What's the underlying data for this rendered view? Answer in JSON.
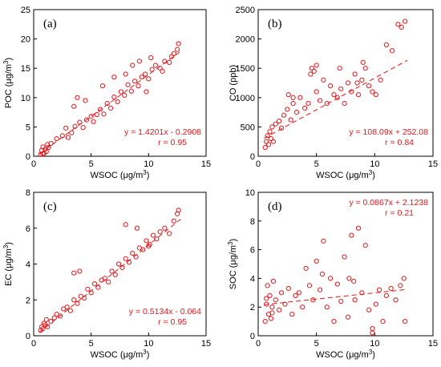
{
  "colors": {
    "points": "#e8141b",
    "fit": "#e8141b",
    "axes": "#000000"
  },
  "chart_data": [
    {
      "type": "scatter",
      "panel_label": "(a)",
      "xlabel_main": "WSOC (μg/m",
      "xlabel_sup": "3",
      "xlabel_end": ")",
      "ylabel_main": "POC (μg/m",
      "ylabel_sup": "3",
      "ylabel_end": ")",
      "xlim": [
        0,
        15
      ],
      "ylim": [
        0,
        25
      ],
      "xticks": [
        0,
        5,
        10,
        15
      ],
      "yticks": [
        0,
        5,
        10,
        15,
        20,
        25
      ],
      "fit": {
        "slope": 1.4201,
        "intercept": -0.2908
      },
      "equation": "y = 1.4201x - 0.2908",
      "r_text": "r = 0.95",
      "label_position": "bottom-right",
      "series": [
        {
          "x": [
            0.6,
            0.7,
            0.8,
            0.9,
            1.0,
            1.1,
            1.2,
            1.3,
            0.8,
            1.5,
            2.0,
            2.5,
            2.8,
            3.0,
            3.3,
            3.6,
            4.0,
            4.3,
            4.6,
            5.0,
            5.2,
            5.5,
            5.8,
            6.1,
            6.4,
            6.7,
            7.0,
            7.3,
            7.6,
            7.9,
            8.2,
            8.5,
            8.8,
            9.1,
            9.4,
            9.7,
            10.0,
            10.3,
            10.6,
            11.0,
            11.4,
            11.8,
            12.2,
            12.5,
            12.6,
            9.8,
            8.0,
            7.0,
            6.0,
            4.5,
            3.5,
            3.8,
            8.6,
            9.2,
            10.2,
            11.2,
            12.0
          ],
          "y": [
            0.3,
            1.0,
            1.6,
            0.5,
            1.2,
            0.8,
            2.0,
            1.5,
            0.4,
            2.2,
            3.0,
            3.5,
            4.8,
            3.2,
            4.0,
            5.1,
            5.8,
            4.9,
            6.2,
            6.8,
            5.9,
            7.1,
            8.0,
            7.2,
            9.0,
            8.2,
            10.1,
            9.3,
            11.0,
            10.4,
            12.2,
            11.1,
            12.8,
            12.0,
            13.5,
            14.0,
            13.2,
            14.8,
            15.5,
            15.0,
            16.2,
            16.0,
            17.5,
            18.2,
            19.2,
            11.0,
            14.0,
            13.5,
            12.0,
            9.5,
            8.5,
            10.0,
            15.5,
            16.2,
            16.8,
            14.5,
            17.0
          ]
        }
      ]
    },
    {
      "type": "scatter",
      "panel_label": "(b)",
      "xlabel_main": "WSOC (μg/m",
      "xlabel_sup": "3",
      "xlabel_end": ")",
      "ylabel_main": "CO (ppb)",
      "ylabel_sup": "",
      "ylabel_end": "",
      "xlim": [
        0,
        15
      ],
      "ylim": [
        0,
        2500
      ],
      "xticks": [
        0,
        5,
        10,
        15
      ],
      "yticks": [
        0,
        500,
        1000,
        1500,
        2000,
        2500
      ],
      "fit": {
        "slope": 108.09,
        "intercept": 252.08
      },
      "equation": "y = 108.09x + 252.08",
      "r_text": "r = 0.84",
      "label_position": "bottom-right",
      "series": [
        {
          "x": [
            0.6,
            0.7,
            0.8,
            0.9,
            1.0,
            1.1,
            1.2,
            1.3,
            1.5,
            1.8,
            2.0,
            2.2,
            2.5,
            2.8,
            3.0,
            3.3,
            3.6,
            4.0,
            4.3,
            4.6,
            4.8,
            5.0,
            5.3,
            5.6,
            5.9,
            6.2,
            6.5,
            6.8,
            7.1,
            7.4,
            7.7,
            8.0,
            8.3,
            8.6,
            8.9,
            9.2,
            9.5,
            9.8,
            10.1,
            10.5,
            11.0,
            11.5,
            12.0,
            12.3,
            12.6,
            4.5,
            5.0,
            7.0,
            8.5,
            9.0,
            3.0,
            2.6
          ],
          "y": [
            150,
            250,
            350,
            200,
            420,
            300,
            500,
            250,
            550,
            600,
            480,
            700,
            800,
            620,
            900,
            750,
            1000,
            820,
            900,
            1500,
            1450,
            1100,
            950,
            1300,
            900,
            1200,
            1050,
            1000,
            1150,
            900,
            1250,
            1100,
            1400,
            1050,
            1300,
            1500,
            1200,
            1100,
            1050,
            1300,
            1900,
            1800,
            2250,
            2200,
            2300,
            1400,
            1550,
            1500,
            1250,
            1600,
            1000,
            1050
          ]
        }
      ]
    },
    {
      "type": "scatter",
      "panel_label": "(c)",
      "xlabel_main": "WSOC (μg/m",
      "xlabel_sup": "3",
      "xlabel_end": ")",
      "ylabel_main": "EC (μg/m",
      "ylabel_sup": "3",
      "ylabel_end": ")",
      "xlim": [
        0,
        15
      ],
      "ylim": [
        0,
        8
      ],
      "xticks": [
        0,
        5,
        10,
        15
      ],
      "yticks": [
        0,
        2,
        4,
        6,
        8
      ],
      "fit": {
        "slope": 0.5134,
        "intercept": -0.064
      },
      "equation": "y = 0.5134x - 0.064",
      "r_text": "r = 0.95",
      "label_position": "bottom-right",
      "series": [
        {
          "x": [
            0.6,
            0.7,
            0.8,
            0.9,
            1.0,
            1.1,
            1.2,
            1.5,
            1.8,
            2.0,
            2.3,
            2.6,
            2.9,
            3.2,
            3.5,
            3.8,
            4.1,
            4.4,
            4.7,
            5.0,
            5.3,
            5.6,
            5.9,
            6.2,
            6.5,
            6.8,
            7.1,
            7.4,
            7.7,
            8.0,
            8.3,
            8.6,
            8.9,
            9.2,
            9.5,
            9.8,
            10.1,
            10.4,
            10.7,
            11.0,
            11.4,
            11.8,
            12.2,
            12.5,
            12.6,
            3.5,
            4.0,
            9.0,
            8.0,
            10.0
          ],
          "y": [
            0.3,
            0.5,
            0.4,
            0.7,
            0.6,
            0.9,
            0.5,
            0.8,
            1.0,
            1.2,
            1.1,
            1.5,
            1.6,
            1.4,
            2.0,
            1.8,
            2.2,
            2.1,
            2.6,
            2.4,
            2.9,
            2.7,
            3.1,
            3.2,
            3.0,
            3.6,
            3.4,
            4.0,
            3.8,
            4.3,
            4.1,
            4.6,
            4.4,
            4.9,
            4.8,
            5.3,
            5.1,
            5.6,
            5.4,
            5.8,
            6.0,
            5.7,
            6.4,
            6.8,
            7.0,
            3.5,
            3.6,
            6.0,
            6.2,
            5.0
          ]
        }
      ]
    },
    {
      "type": "scatter",
      "panel_label": "(d)",
      "xlabel_main": "WSOC (μg/m",
      "xlabel_sup": "3",
      "xlabel_end": ")",
      "ylabel_main": "SOC (μg/m",
      "ylabel_sup": "3",
      "ylabel_end": ")",
      "xlim": [
        0,
        15
      ],
      "ylim": [
        0,
        10
      ],
      "xticks": [
        0,
        5,
        10,
        15
      ],
      "yticks": [
        0,
        2,
        4,
        6,
        8,
        10
      ],
      "fit": {
        "slope": 0.0867,
        "intercept": 2.1238
      },
      "equation": "y = 0.0867x + 2.1238",
      "r_text": "r = 0.21",
      "label_position": "top-right",
      "series": [
        {
          "x": [
            0.6,
            0.7,
            0.8,
            0.9,
            1.0,
            1.1,
            1.2,
            1.3,
            1.5,
            1.8,
            2.0,
            2.3,
            2.6,
            2.9,
            3.2,
            3.5,
            3.8,
            4.1,
            4.4,
            4.7,
            5.0,
            5.3,
            5.6,
            5.9,
            6.2,
            6.5,
            6.8,
            7.1,
            7.4,
            7.7,
            8.0,
            8.3,
            8.6,
            8.9,
            9.2,
            9.5,
            9.8,
            10.1,
            10.4,
            10.7,
            11.0,
            11.4,
            11.8,
            12.2,
            12.5,
            12.6,
            5.5,
            7.8,
            8.2,
            9.8,
            1.2,
            0.7
          ],
          "y": [
            1.0,
            2.2,
            3.5,
            1.5,
            2.8,
            1.2,
            2.0,
            3.8,
            2.5,
            1.8,
            3.0,
            2.2,
            3.3,
            1.5,
            2.8,
            3.0,
            2.0,
            4.7,
            3.5,
            2.5,
            5.2,
            3.2,
            6.6,
            2.0,
            4.0,
            1.0,
            3.6,
            2.4,
            5.5,
            1.3,
            7.0,
            2.5,
            7.5,
            3.0,
            6.3,
            1.8,
            0.5,
            2.2,
            3.2,
            1.0,
            2.8,
            3.3,
            2.5,
            3.5,
            4.0,
            1.0,
            4.3,
            4.0,
            3.8,
            0.2,
            1.6,
            2.6
          ]
        }
      ]
    }
  ]
}
